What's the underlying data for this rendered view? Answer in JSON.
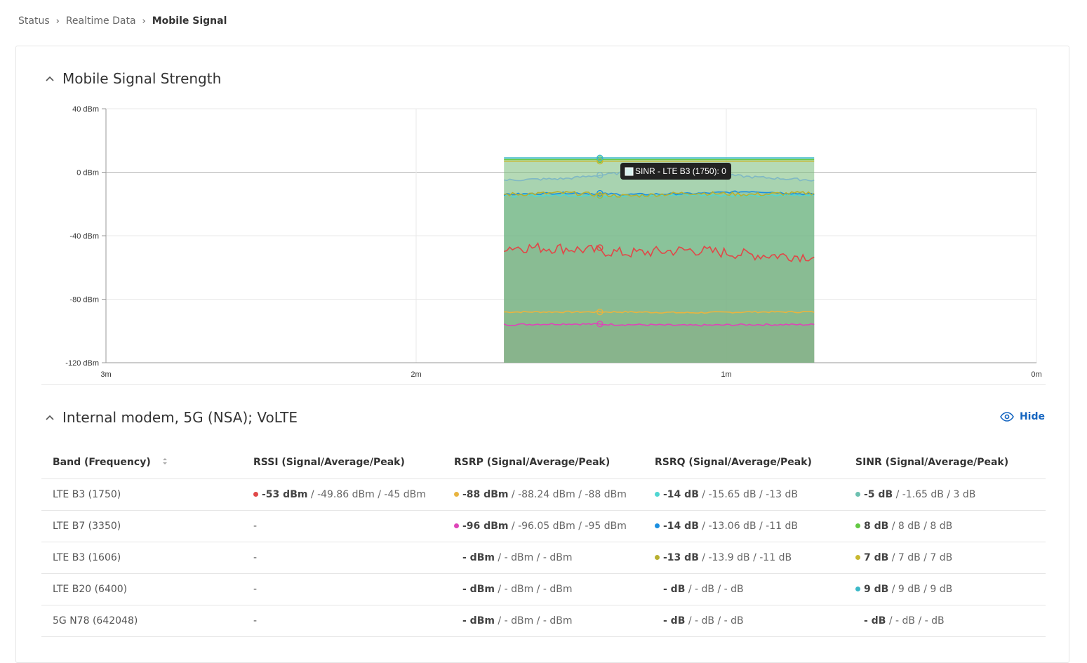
{
  "breadcrumb": {
    "items": [
      "Status",
      "Realtime Data"
    ],
    "current": "Mobile Signal"
  },
  "section_chart": {
    "title": "Mobile Signal Strength"
  },
  "section_modem": {
    "title": "Internal modem, 5G (NSA); VoLTE",
    "hide_label": "Hide"
  },
  "tooltip": {
    "text": "SINR - LTE B3 (1750): 0"
  },
  "table": {
    "headers": [
      "Band (Frequency)",
      "RSSI (Signal/Average/Peak)",
      "RSRP (Signal/Average/Peak)",
      "RSRQ (Signal/Average/Peak)",
      "SINR (Signal/Average/Peak)"
    ],
    "rows": [
      {
        "band": "LTE B3 (1750)",
        "rssi": {
          "dash": "",
          "color": "#e04848",
          "val": "-53 dBm",
          "rest": " / -49.86 dBm / -45 dBm"
        },
        "rsrp": {
          "color": "#e8b440",
          "val": "-88 dBm",
          "rest": " / -88.24 dBm / -88 dBm"
        },
        "rsrq": {
          "color": "#4fd6d2",
          "val": "-14 dB",
          "rest": " / -15.65 dB / -13 dB"
        },
        "sinr": {
          "color": "#6cc0b0",
          "val": "-5 dB",
          "rest": " / -1.65 dB / 3 dB"
        }
      },
      {
        "band": "LTE B7 (3350)",
        "rssi": {
          "dash": "-",
          "color": "",
          "val": "",
          "rest": ""
        },
        "rsrp": {
          "color": "#de45b8",
          "val": "-96 dBm",
          "rest": " / -96.05 dBm / -95 dBm"
        },
        "rsrq": {
          "color": "#1a8fe0",
          "val": "-14 dB",
          "rest": " / -13.06 dB / -11 dB"
        },
        "sinr": {
          "color": "#62c842",
          "val": "8 dB",
          "rest": " / 8 dB / 8 dB"
        }
      },
      {
        "band": "LTE B3 (1606)",
        "rssi": {
          "dash": "-",
          "color": "",
          "val": "",
          "rest": ""
        },
        "rsrp": {
          "color": "",
          "val": "- dBm",
          "rest": " / - dBm / - dBm"
        },
        "rsrq": {
          "color": "#b8b030",
          "val": "-13 dB",
          "rest": " / -13.9 dB / -11 dB"
        },
        "sinr": {
          "color": "#c8b830",
          "val": "7 dB",
          "rest": " / 7 dB / 7 dB"
        }
      },
      {
        "band": "LTE B20 (6400)",
        "rssi": {
          "dash": "-",
          "color": "",
          "val": "",
          "rest": ""
        },
        "rsrp": {
          "color": "",
          "val": "- dBm",
          "rest": " / - dBm / - dBm"
        },
        "rsrq": {
          "color": "",
          "val": "- dB",
          "rest": " / - dB / - dB"
        },
        "sinr": {
          "color": "#3ab8c8",
          "val": "9 dB",
          "rest": " / 9 dB / 9 dB"
        }
      },
      {
        "band": "5G N78 (642048)",
        "rssi": {
          "dash": "-",
          "color": "",
          "val": "",
          "rest": ""
        },
        "rsrp": {
          "color": "",
          "val": "- dBm",
          "rest": " / - dBm / - dBm"
        },
        "rsrq": {
          "color": "",
          "val": "- dB",
          "rest": " / - dB / - dB"
        },
        "sinr": {
          "color": "",
          "val": "- dB",
          "rest": " / - dB / - dB"
        }
      }
    ]
  },
  "chart_data": {
    "type": "area",
    "yticks": [
      "40 dBm",
      "0 dBm",
      "-40 dBm",
      "-80 dBm",
      "-120 dBm"
    ],
    "xticks": [
      "3m",
      "2m",
      "1m",
      "0m"
    ],
    "xlim": [
      180,
      0
    ],
    "ylim": [
      -120,
      40
    ],
    "grid": true,
    "data_start": 60,
    "series": [
      {
        "color": "#e8b440",
        "noise": 0.5,
        "values": [
          -88,
          -88,
          -88,
          -88.5,
          -88,
          -88
        ]
      },
      {
        "color": "#de45b8",
        "noise": 0.6,
        "values": [
          -96,
          -95.5,
          -96,
          -96.5,
          -96,
          -96
        ]
      },
      {
        "color": "#e04848",
        "noise": 3.5,
        "values": [
          -47,
          -48,
          -51,
          -49,
          -52,
          -53
        ]
      },
      {
        "color": "#4fd6d2",
        "noise": 0.8,
        "values": [
          -15,
          -14.5,
          -15,
          -14,
          -15,
          -14
        ]
      },
      {
        "color": "#1a8fe0",
        "noise": 0.6,
        "values": [
          -14,
          -13,
          -14,
          -13.5,
          -12,
          -14
        ]
      },
      {
        "color": "#b8b030",
        "noise": 1.2,
        "values": [
          -14,
          -13,
          -15,
          -13,
          -14,
          -13
        ]
      },
      {
        "color": "#7fb8c4",
        "noise": 0.8,
        "values": [
          -5,
          -4,
          0,
          0,
          -3,
          -5
        ]
      },
      {
        "color": "#62c842",
        "noise": 0,
        "values": [
          8,
          8,
          8,
          8,
          8,
          8
        ]
      },
      {
        "color": "#c8b830",
        "noise": 0,
        "values": [
          7,
          7,
          7,
          7,
          7,
          7
        ]
      },
      {
        "color": "#3ab8c8",
        "noise": 0,
        "values": [
          9,
          9,
          9,
          9,
          9,
          9
        ]
      }
    ]
  }
}
